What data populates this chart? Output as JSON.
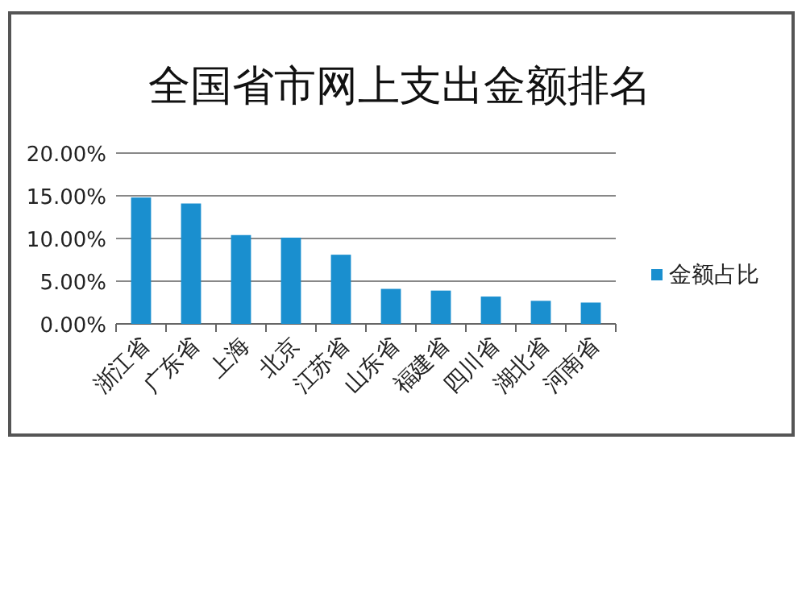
{
  "chart_data": {
    "type": "bar",
    "title": "全国省市网上支出金额排名",
    "categories": [
      "浙江省",
      "广东省",
      "上海",
      "北京",
      "江苏省",
      "山东省",
      "福建省",
      "四川省",
      "湖北省",
      "河南省"
    ],
    "series": [
      {
        "name": "金额占比",
        "color": "#1a8fcf",
        "values": [
          14.8,
          14.1,
          10.4,
          10.1,
          8.1,
          4.1,
          3.9,
          3.2,
          2.7,
          2.5
        ]
      }
    ],
    "ylim": [
      0,
      20
    ],
    "yticks": [
      {
        "value": 0,
        "label": "0.00%"
      },
      {
        "value": 5,
        "label": "5.00%"
      },
      {
        "value": 10,
        "label": "10.00%"
      },
      {
        "value": 15,
        "label": "15.00%"
      },
      {
        "value": 20,
        "label": "20.00%"
      }
    ],
    "grid": "y",
    "legend": "right"
  }
}
